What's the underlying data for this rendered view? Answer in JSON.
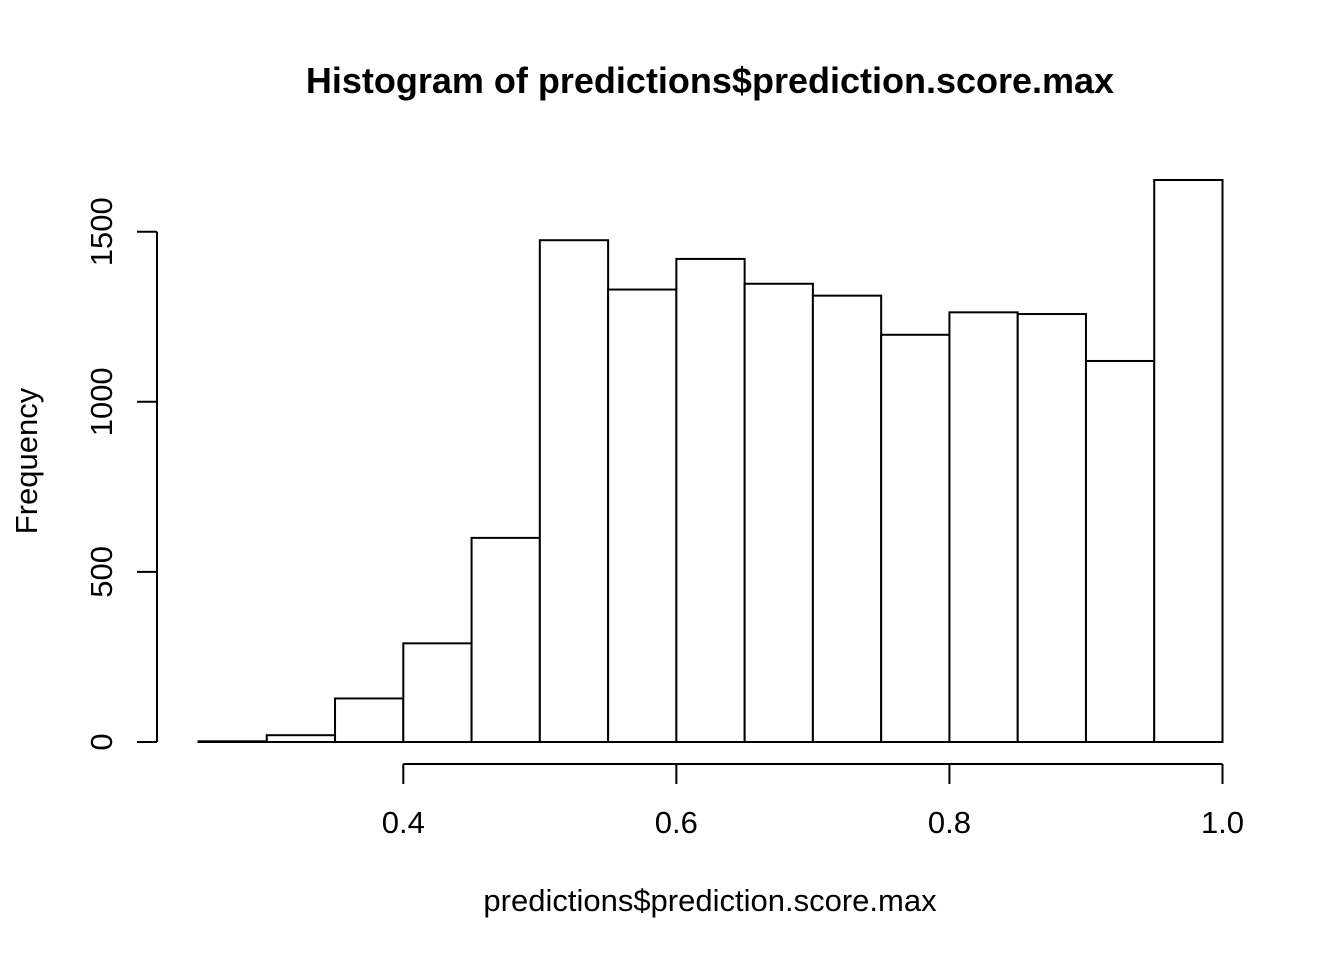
{
  "chart_data": {
    "type": "bar",
    "title": "Histogram of predictions$prediction.score.max",
    "xlabel": "predictions$prediction.score.max",
    "ylabel": "Frequency",
    "bins": [
      {
        "start": 0.25,
        "end": 0.3,
        "count": 2
      },
      {
        "start": 0.3,
        "end": 0.35,
        "count": 20
      },
      {
        "start": 0.35,
        "end": 0.4,
        "count": 128
      },
      {
        "start": 0.4,
        "end": 0.45,
        "count": 290
      },
      {
        "start": 0.45,
        "end": 0.5,
        "count": 600
      },
      {
        "start": 0.5,
        "end": 0.55,
        "count": 1475
      },
      {
        "start": 0.55,
        "end": 0.6,
        "count": 1330
      },
      {
        "start": 0.6,
        "end": 0.65,
        "count": 1420
      },
      {
        "start": 0.65,
        "end": 0.7,
        "count": 1347
      },
      {
        "start": 0.7,
        "end": 0.75,
        "count": 1312
      },
      {
        "start": 0.75,
        "end": 0.8,
        "count": 1197
      },
      {
        "start": 0.8,
        "end": 0.85,
        "count": 1263
      },
      {
        "start": 0.85,
        "end": 0.9,
        "count": 1258
      },
      {
        "start": 0.9,
        "end": 0.95,
        "count": 1120
      },
      {
        "start": 0.95,
        "end": 1.0,
        "count": 1652
      }
    ],
    "xticks": [
      {
        "value": 0.4,
        "label": "0.4"
      },
      {
        "value": 0.6,
        "label": "0.6"
      },
      {
        "value": 0.8,
        "label": "0.8"
      },
      {
        "value": 1.0,
        "label": "1.0"
      }
    ],
    "yticks": [
      {
        "value": 0,
        "label": "0"
      },
      {
        "value": 500,
        "label": "500"
      },
      {
        "value": 1000,
        "label": "1000"
      },
      {
        "value": 1500,
        "label": "1500"
      }
    ],
    "xlim": [
      0.25,
      1.0
    ],
    "ylim": [
      0,
      1652
    ],
    "grid": false,
    "legend": "none",
    "colors": {
      "bar_fill": "#ffffff",
      "bar_stroke": "#000000"
    }
  }
}
